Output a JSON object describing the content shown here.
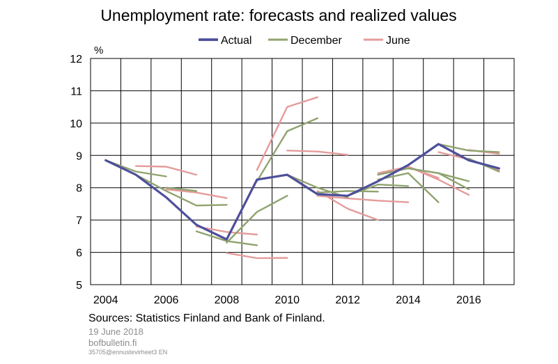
{
  "chart_data": {
    "type": "line",
    "title": "Unemployment rate: forecasts and realized values",
    "ylabel": "%",
    "xlabel": "",
    "xlim": [
      2003.5,
      2017.5
    ],
    "ylim": [
      5,
      12
    ],
    "yticks": [
      5,
      6,
      7,
      8,
      9,
      10,
      11,
      12
    ],
    "xticks": [
      2004,
      2006,
      2008,
      2010,
      2012,
      2014,
      2016
    ],
    "grid": true,
    "legend": "top-center",
    "series": [
      {
        "name": "Actual",
        "color": "#4d4f9c",
        "width": 3.2,
        "segments": [
          [
            [
              2004,
              8.85
            ],
            [
              2005,
              8.4
            ],
            [
              2006,
              7.7
            ],
            [
              2007,
              6.85
            ],
            [
              2008,
              6.4
            ],
            [
              2009,
              8.25
            ],
            [
              2010,
              8.4
            ],
            [
              2011,
              7.8
            ],
            [
              2012,
              7.75
            ],
            [
              2013,
              8.2
            ],
            [
              2014,
              8.7
            ],
            [
              2015,
              9.35
            ],
            [
              2016,
              8.85
            ],
            [
              2017,
              8.6
            ]
          ]
        ]
      },
      {
        "name": "December",
        "color": "#8fa36e",
        "width": 2.4,
        "segments": [
          [
            [
              2004,
              8.85
            ],
            [
              2005,
              8.5
            ],
            [
              2006,
              8.35
            ]
          ],
          [
            [
              2005,
              8.4
            ],
            [
              2006,
              7.9
            ],
            [
              2007,
              7.45
            ],
            [
              2008,
              7.47
            ]
          ],
          [
            [
              2006,
              8.0
            ],
            [
              2007,
              7.9
            ]
          ],
          [
            [
              2007,
              6.65
            ],
            [
              2008,
              6.35
            ],
            [
              2009,
              6.22
            ]
          ],
          [
            [
              2008,
              6.3
            ],
            [
              2009,
              7.25
            ],
            [
              2010,
              7.75
            ]
          ],
          [
            [
              2009,
              8.2
            ],
            [
              2010,
              9.75
            ],
            [
              2011,
              10.15
            ]
          ],
          [
            [
              2010,
              8.4
            ],
            [
              2011,
              8.0
            ],
            [
              2012,
              7.7
            ]
          ],
          [
            [
              2011,
              7.85
            ],
            [
              2012,
              7.9
            ],
            [
              2013,
              7.88
            ]
          ],
          [
            [
              2012,
              7.75
            ],
            [
              2013,
              8.1
            ],
            [
              2014,
              8.05
            ]
          ],
          [
            [
              2013,
              8.25
            ],
            [
              2014,
              8.45
            ],
            [
              2015,
              7.55
            ]
          ],
          [
            [
              2013,
              8.4
            ],
            [
              2014,
              8.6
            ],
            [
              2015,
              8.45
            ],
            [
              2016,
              8.2
            ]
          ],
          [
            [
              2014,
              8.6
            ],
            [
              2015,
              8.45
            ],
            [
              2016,
              7.95
            ]
          ],
          [
            [
              2015,
              9.35
            ],
            [
              2016,
              9.15
            ],
            [
              2017,
              9.1
            ]
          ],
          [
            [
              2016,
              8.9
            ],
            [
              2017,
              8.5
            ]
          ]
        ]
      },
      {
        "name": "June",
        "color": "#e59b9b",
        "width": 2.4,
        "segments": [
          [
            [
              2005,
              8.67
            ],
            [
              2006,
              8.65
            ],
            [
              2007,
              8.4
            ]
          ],
          [
            [
              2006,
              7.95
            ],
            [
              2007,
              7.85
            ],
            [
              2008,
              7.68
            ]
          ],
          [
            [
              2007,
              6.8
            ],
            [
              2008,
              6.63
            ],
            [
              2009,
              6.55
            ]
          ],
          [
            [
              2008,
              5.98
            ],
            [
              2009,
              5.82
            ],
            [
              2010,
              5.83
            ]
          ],
          [
            [
              2009,
              8.55
            ],
            [
              2010,
              10.5
            ],
            [
              2011,
              10.8
            ]
          ],
          [
            [
              2010,
              9.15
            ],
            [
              2011,
              9.12
            ],
            [
              2012,
              9.02
            ]
          ],
          [
            [
              2011,
              7.9
            ],
            [
              2012,
              7.35
            ],
            [
              2013,
              7.0
            ]
          ],
          [
            [
              2011,
              7.75
            ],
            [
              2012,
              7.67
            ],
            [
              2013,
              7.6
            ],
            [
              2014,
              7.55
            ]
          ],
          [
            [
              2013,
              8.45
            ],
            [
              2014,
              8.65
            ],
            [
              2015,
              8.3
            ]
          ],
          [
            [
              2014,
              8.65
            ],
            [
              2015,
              8.25
            ],
            [
              2016,
              7.78
            ]
          ],
          [
            [
              2015,
              9.1
            ],
            [
              2016,
              8.88
            ],
            [
              2017,
              8.55
            ]
          ],
          [
            [
              2016,
              9.17
            ],
            [
              2017,
              9.05
            ]
          ]
        ]
      }
    ]
  },
  "footer": {
    "sources": "Sources: Statistics Finland and Bank of Finland.",
    "date": "19 June 2018",
    "site": "bofbulletin.fi",
    "code": "35705@ennustevirheet3  EN"
  }
}
